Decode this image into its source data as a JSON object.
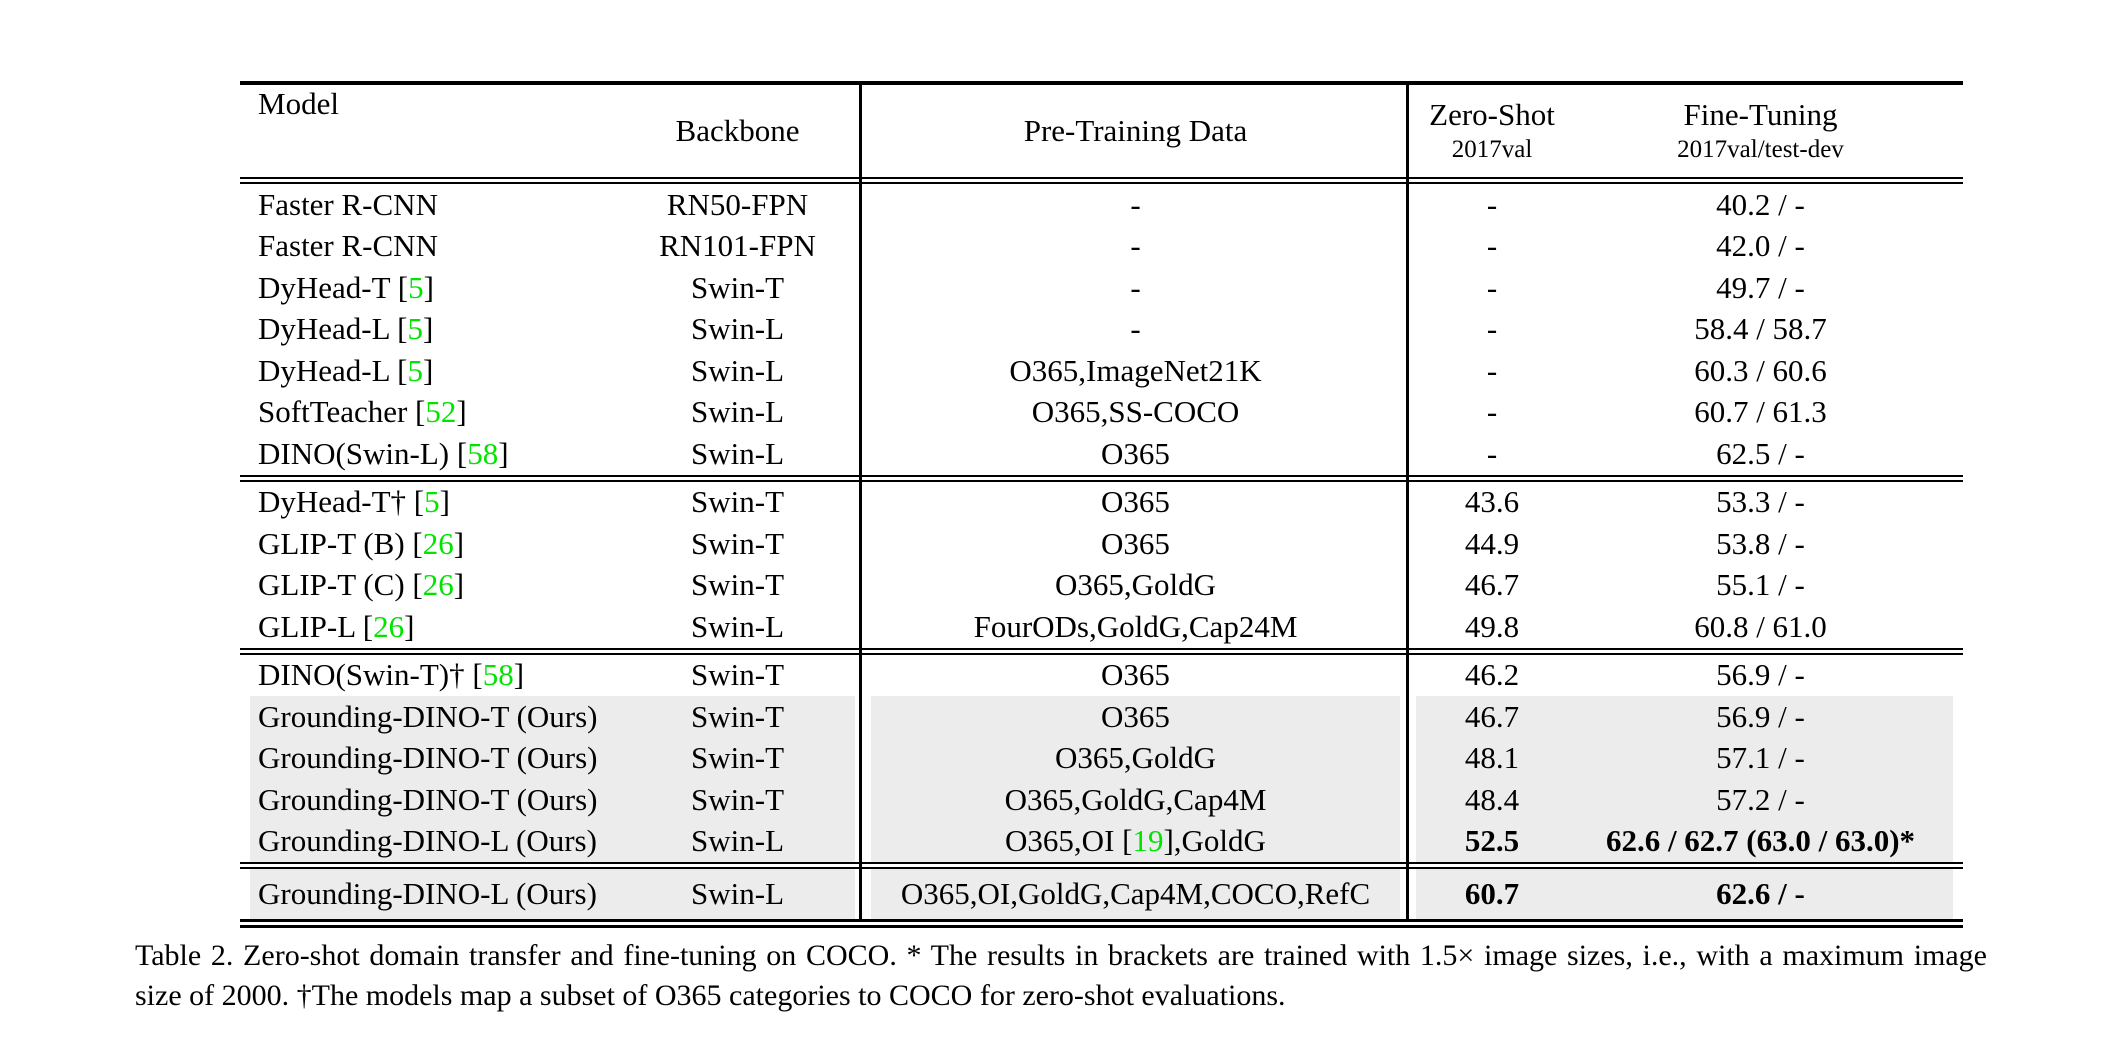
{
  "colors": {
    "reference_green": "#00e400",
    "highlight_gray": "#ececec",
    "text_black": "#000000",
    "background": "#ffffff"
  },
  "table": {
    "header": {
      "model": "Model",
      "backbone": "Backbone",
      "pretrain": "Pre-Training Data",
      "zeroshot_line1": "Zero-Shot",
      "zeroshot_line2": "2017val",
      "finetune_line1": "Fine-Tuning",
      "finetune_line2": "2017val/test-dev"
    },
    "sections": [
      {
        "rows": [
          {
            "model": "Faster R-CNN",
            "backbone": "RN50-FPN",
            "pretrain": "-",
            "zeroshot": "-",
            "finetune": "40.2 / -"
          },
          {
            "model": "Faster R-CNN",
            "backbone": "RN101-FPN",
            "pretrain": "-",
            "zeroshot": "-",
            "finetune": "42.0 / -"
          },
          {
            "model": {
              "pre": "DyHead-T [",
              "ref": "5",
              "post": "]"
            },
            "backbone": "Swin-T",
            "pretrain": "-",
            "zeroshot": "-",
            "finetune": "49.7 / -"
          },
          {
            "model": {
              "pre": "DyHead-L [",
              "ref": "5",
              "post": "]"
            },
            "backbone": "Swin-L",
            "pretrain": "-",
            "zeroshot": "-",
            "finetune": "58.4 / 58.7"
          },
          {
            "model": {
              "pre": "DyHead-L [",
              "ref": "5",
              "post": "]"
            },
            "backbone": "Swin-L",
            "pretrain": "O365,ImageNet21K",
            "zeroshot": "-",
            "finetune": "60.3 / 60.6"
          },
          {
            "model": {
              "pre": "SoftTeacher [",
              "ref": "52",
              "post": "]"
            },
            "backbone": "Swin-L",
            "pretrain": "O365,SS-COCO",
            "zeroshot": "-",
            "finetune": "60.7 / 61.3"
          },
          {
            "model": {
              "pre": "DINO(Swin-L) [",
              "ref": "58",
              "post": "]"
            },
            "backbone": "Swin-L",
            "pretrain": "O365",
            "zeroshot": "-",
            "finetune": "62.5 / -"
          }
        ]
      },
      {
        "rows": [
          {
            "model": {
              "pre": "DyHead-T† [",
              "ref": "5",
              "post": "]"
            },
            "backbone": "Swin-T",
            "pretrain": "O365",
            "zeroshot": "43.6",
            "finetune": "53.3 / -"
          },
          {
            "model": {
              "pre": "GLIP-T (B) [",
              "ref": "26",
              "post": "]"
            },
            "backbone": "Swin-T",
            "pretrain": "O365",
            "zeroshot": "44.9",
            "finetune": "53.8 / -"
          },
          {
            "model": {
              "pre": "GLIP-T (C) [",
              "ref": "26",
              "post": "]"
            },
            "backbone": "Swin-T",
            "pretrain": "O365,GoldG",
            "zeroshot": "46.7",
            "finetune": "55.1 / -"
          },
          {
            "model": {
              "pre": "GLIP-L [",
              "ref": "26",
              "post": "]"
            },
            "backbone": "Swin-L",
            "pretrain": "FourODs,GoldG,Cap24M",
            "zeroshot": "49.8",
            "finetune": "60.8 / 61.0"
          }
        ]
      },
      {
        "rows": [
          {
            "model": {
              "pre": "DINO(Swin-T)† [",
              "ref": "58",
              "post": "]"
            },
            "backbone": "Swin-T",
            "pretrain": "O365",
            "zeroshot": "46.2",
            "finetune": "56.9 / -"
          },
          {
            "model": "Grounding-DINO-T (Ours)",
            "backbone": "Swin-T",
            "pretrain": "O365",
            "zeroshot": "46.7",
            "finetune": "56.9 / -",
            "highlight": true
          },
          {
            "model": "Grounding-DINO-T (Ours)",
            "backbone": "Swin-T",
            "pretrain": "O365,GoldG",
            "zeroshot": "48.1",
            "finetune": "57.1 / -",
            "highlight": true
          },
          {
            "model": "Grounding-DINO-T (Ours)",
            "backbone": "Swin-T",
            "pretrain": "O365,GoldG,Cap4M",
            "zeroshot": "48.4",
            "finetune": "57.2 / -",
            "highlight": true
          },
          {
            "model": "Grounding-DINO-L (Ours)",
            "backbone": "Swin-L",
            "pretrain": {
              "pre": "O365,OI [",
              "ref": "19",
              "post": "],GoldG"
            },
            "zeroshot": "52.5",
            "finetune": "62.6 / 62.7 (63.0 / 63.0)*",
            "highlight": true,
            "bold": true
          }
        ]
      },
      {
        "rows": [
          {
            "model": "Grounding-DINO-L (Ours)",
            "backbone": "Swin-L",
            "pretrain": "O365,OI,GoldG,Cap4M,COCO,RefC",
            "zeroshot": "60.7",
            "finetune": "62.6 / -",
            "highlight": true,
            "bold": true
          }
        ]
      }
    ],
    "caption": "Table 2.  Zero-shot domain transfer and fine-tuning on COCO. * The results in brackets are trained with 1.5× image sizes, i.e., with a maximum image size of 2000. †The models map a subset of O365 categories to COCO for zero-shot evaluations."
  }
}
